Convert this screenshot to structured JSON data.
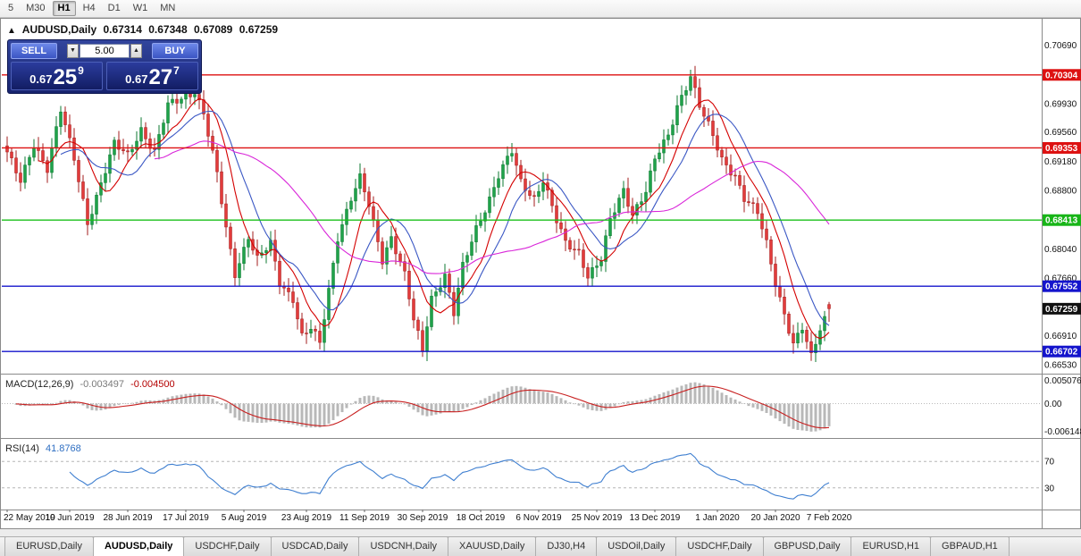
{
  "icons": {
    "panel_toggle": "▲",
    "spin_up": "▲",
    "spin_down": "▼"
  },
  "toolbar": {
    "periods": [
      {
        "label": "5",
        "active": false
      },
      {
        "label": "M30",
        "active": false
      },
      {
        "label": "H1",
        "active": true
      },
      {
        "label": "H4",
        "active": false
      },
      {
        "label": "D1",
        "active": false
      },
      {
        "label": "W1",
        "active": false
      },
      {
        "label": "MN",
        "active": false
      }
    ]
  },
  "chart_header": {
    "symbol": "AUDUSD,Daily",
    "open": "0.67314",
    "high": "0.67348",
    "low": "0.67089",
    "close": "0.67259"
  },
  "trade_panel": {
    "sell_label": "SELL",
    "buy_label": "BUY",
    "lot_value": "5.00",
    "sell_price": {
      "prefix": "0.67",
      "big": "25",
      "sup": "9"
    },
    "buy_price": {
      "prefix": "0.67",
      "big": "27",
      "sup": "7"
    }
  },
  "indicators": {
    "macd": {
      "label": "MACD(12,26,9)",
      "value1": "-0.003497",
      "value2": "-0.004500",
      "axis_labels": [
        {
          "text": "0.005076",
          "value": 0.005076
        },
        {
          "text": "0.00",
          "value": 0
        },
        {
          "text": "-0.006148",
          "value": -0.006148
        }
      ]
    },
    "rsi": {
      "label": "RSI(14)",
      "value": "41.8768",
      "axis_labels": [
        {
          "text": "70",
          "value": 70
        },
        {
          "text": "30",
          "value": 30
        }
      ]
    }
  },
  "price_axis": {
    "labels": [
      {
        "text": "0.70690",
        "value": 0.7069
      },
      {
        "text": "0.70304",
        "value": 0.70304,
        "bg": "#dd1111"
      },
      {
        "text": "0.69930",
        "value": 0.6993
      },
      {
        "text": "0.69560",
        "value": 0.6956
      },
      {
        "text": "0.69353",
        "value": 0.69353,
        "bg": "#dd1111"
      },
      {
        "text": "0.69180",
        "value": 0.6918
      },
      {
        "text": "0.68800",
        "value": 0.688
      },
      {
        "text": "0.68413",
        "value": 0.68413,
        "bg": "#18b518"
      },
      {
        "text": "0.68040",
        "value": 0.6804
      },
      {
        "text": "0.67660",
        "value": 0.6766
      },
      {
        "text": "0.67552",
        "value": 0.67552,
        "bg": "#1414cc"
      },
      {
        "text": "0.67259",
        "value": 0.67259,
        "bg": "#111111"
      },
      {
        "text": "0.66910",
        "value": 0.6691
      },
      {
        "text": "0.66702",
        "value": 0.66702,
        "bg": "#1414cc"
      },
      {
        "text": "0.66530",
        "value": 0.6653
      }
    ]
  },
  "hlines": [
    {
      "price": 0.70304,
      "color": "#dd1111"
    },
    {
      "price": 0.69353,
      "color": "#dd1111"
    },
    {
      "price": 0.68413,
      "color": "#19c119"
    },
    {
      "price": 0.67552,
      "color": "#1414cc"
    },
    {
      "price": 0.66702,
      "color": "#1414cc"
    }
  ],
  "x_axis": {
    "labels": [
      {
        "text": "22 May 2019",
        "index": 0
      },
      {
        "text": "10 Jun 2019",
        "index": 14
      },
      {
        "text": "28 Jun 2019",
        "index": 27
      },
      {
        "text": "17 Jul 2019",
        "index": 40
      },
      {
        "text": "5 Aug 2019",
        "index": 53
      },
      {
        "text": "23 Aug 2019",
        "index": 67
      },
      {
        "text": "11 Sep 2019",
        "index": 80
      },
      {
        "text": "30 Sep 2019",
        "index": 93
      },
      {
        "text": "18 Oct 2019",
        "index": 106
      },
      {
        "text": "6 Nov 2019",
        "index": 119
      },
      {
        "text": "25 Nov 2019",
        "index": 132
      },
      {
        "text": "13 Dec 2019",
        "index": 145
      },
      {
        "text": "1 Jan 2020",
        "index": 159
      },
      {
        "text": "20 Jan 2020",
        "index": 172
      },
      {
        "text": "7 Feb 2020",
        "index": 184
      }
    ]
  },
  "tabs": {
    "items": [
      {
        "label": "EURUSD,Daily",
        "active": false
      },
      {
        "label": "AUDUSD,Daily",
        "active": true
      },
      {
        "label": "USDCHF,Daily",
        "active": false
      },
      {
        "label": "USDCAD,Daily",
        "active": false
      },
      {
        "label": "USDCNH,Daily",
        "active": false
      },
      {
        "label": "XAUUSD,Daily",
        "active": false
      },
      {
        "label": "DJ30,H4",
        "active": false
      },
      {
        "label": "USDOil,Daily",
        "active": false
      },
      {
        "label": "USDCHF,Daily",
        "active": false
      },
      {
        "label": "GBPUSD,Daily",
        "active": false
      },
      {
        "label": "EURUSD,H1",
        "active": false
      },
      {
        "label": "GBPAUD,H1",
        "active": false
      }
    ]
  },
  "chart_data": {
    "type": "candlestick",
    "symbol": "AUDUSD",
    "timeframe": "Daily",
    "approximate": true,
    "candle_count": 185,
    "ylim": [
      0.6646,
      0.7093
    ],
    "ohlc_last": {
      "open": 0.67314,
      "high": 0.67348,
      "low": 0.67089,
      "close": 0.67259
    },
    "anchors": [
      [
        0,
        0.693
      ],
      [
        3,
        0.689
      ],
      [
        6,
        0.694
      ],
      [
        9,
        0.691
      ],
      [
        12,
        0.6985
      ],
      [
        15,
        0.692
      ],
      [
        18,
        0.6838
      ],
      [
        21,
        0.689
      ],
      [
        24,
        0.694
      ],
      [
        27,
        0.6925
      ],
      [
        30,
        0.696
      ],
      [
        33,
        0.693
      ],
      [
        36,
        0.699
      ],
      [
        39,
        0.7
      ],
      [
        42,
        0.701
      ],
      [
        44,
        0.698
      ],
      [
        47,
        0.69
      ],
      [
        49,
        0.683
      ],
      [
        51,
        0.6772
      ],
      [
        54,
        0.682
      ],
      [
        56,
        0.679
      ],
      [
        59,
        0.681
      ],
      [
        61,
        0.676
      ],
      [
        64,
        0.674
      ],
      [
        66,
        0.669
      ],
      [
        68,
        0.67
      ],
      [
        70,
        0.668
      ],
      [
        72,
        0.675
      ],
      [
        74,
        0.682
      ],
      [
        77,
        0.687
      ],
      [
        79,
        0.6895
      ],
      [
        81,
        0.686
      ],
      [
        84,
        0.679
      ],
      [
        86,
        0.682
      ],
      [
        89,
        0.677
      ],
      [
        91,
        0.671
      ],
      [
        93,
        0.6672
      ],
      [
        95,
        0.674
      ],
      [
        98,
        0.677
      ],
      [
        100,
        0.672
      ],
      [
        102,
        0.678
      ],
      [
        105,
        0.683
      ],
      [
        108,
        0.687
      ],
      [
        110,
        0.69
      ],
      [
        113,
        0.693
      ],
      [
        115,
        0.689
      ],
      [
        118,
        0.687
      ],
      [
        120,
        0.6895
      ],
      [
        123,
        0.684
      ],
      [
        125,
        0.681
      ],
      [
        128,
        0.68
      ],
      [
        130,
        0.677
      ],
      [
        133,
        0.679
      ],
      [
        135,
        0.684
      ],
      [
        138,
        0.688
      ],
      [
        140,
        0.685
      ],
      [
        143,
        0.688
      ],
      [
        145,
        0.692
      ],
      [
        148,
        0.695
      ],
      [
        150,
        0.699
      ],
      [
        153,
        0.703
      ],
      [
        155,
        0.699
      ],
      [
        158,
        0.695
      ],
      [
        160,
        0.692
      ],
      [
        163,
        0.69
      ],
      [
        165,
        0.687
      ],
      [
        168,
        0.685
      ],
      [
        170,
        0.681
      ],
      [
        172,
        0.676
      ],
      [
        174,
        0.672
      ],
      [
        176,
        0.668
      ],
      [
        178,
        0.67
      ],
      [
        180,
        0.6662
      ],
      [
        182,
        0.67
      ],
      [
        184,
        0.67259
      ]
    ],
    "moving_averages": [
      {
        "period": 8,
        "color": "#d40000"
      },
      {
        "period": 13,
        "color": "#3a57c4"
      },
      {
        "period": 34,
        "color": "#d926d9"
      }
    ],
    "macd": {
      "fast": 12,
      "slow": 26,
      "signal": 9,
      "ylim": [
        -0.0068,
        0.0058
      ]
    },
    "rsi": {
      "period": 14,
      "last_value": 41.8768,
      "levels": [
        30,
        70
      ],
      "ylim": [
        0,
        100
      ]
    },
    "colors": {
      "bull": "#1fa24a",
      "bull_border": "#0c7a31",
      "bear": "#e23b3b",
      "bear_border": "#a31d1d",
      "macd_hist": "#b8b8b8",
      "macd_signal": "#c82020",
      "rsi_line": "#3f7fd0"
    }
  }
}
